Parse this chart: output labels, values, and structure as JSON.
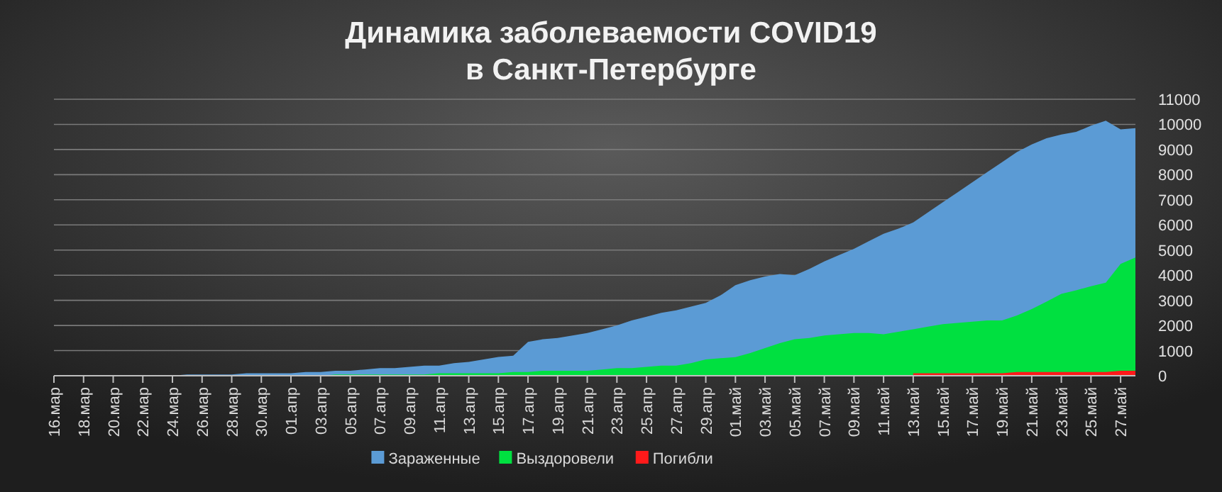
{
  "chart_data": {
    "type": "area",
    "title": "Динамика заболеваемости COVID19\nв Санкт-Петербурге",
    "categories": [
      "16.мар",
      null,
      "18.мар",
      null,
      "20.мар",
      null,
      "22.мар",
      null,
      "24.мар",
      null,
      "26.мар",
      null,
      "28.мар",
      null,
      "30.мар",
      null,
      "01.апр",
      null,
      "03.апр",
      null,
      "05.апр",
      null,
      "07.апр",
      null,
      "09.апр",
      null,
      "11.апр",
      null,
      "13.апр",
      null,
      "15.апр",
      null,
      "17.апр",
      null,
      "19.апр",
      null,
      "21.апр",
      null,
      "23.апр",
      null,
      "25.апр",
      null,
      "27.апр",
      null,
      "29.апр",
      null,
      "01.май",
      null,
      "03.май",
      null,
      "05.май",
      null,
      "07.май",
      null,
      "09.май",
      null,
      "11.май",
      null,
      "13.май",
      null,
      "15.май",
      null,
      "17.май",
      null,
      "19.май",
      null,
      "21.май",
      null,
      "23.май",
      null,
      "25.май",
      null,
      "27.май",
      null
    ],
    "series": [
      {
        "name": "Зараженные",
        "color": "#5b9bd5",
        "values": [
          0,
          0,
          0,
          0,
          0,
          0,
          0,
          0,
          0,
          50,
          50,
          50,
          50,
          100,
          100,
          100,
          100,
          150,
          150,
          200,
          200,
          250,
          300,
          300,
          350,
          400,
          400,
          500,
          550,
          650,
          750,
          800,
          1350,
          1450,
          1500,
          1600,
          1700,
          1850,
          2000,
          2200,
          2350,
          2500,
          2600,
          2750,
          2900,
          3200,
          3600,
          3800,
          3950,
          4050,
          4000,
          4250,
          4550,
          4800,
          5050,
          5350,
          5650,
          5850,
          6100,
          6500,
          6900,
          7300,
          7700,
          8100,
          8500,
          8900,
          9200,
          9450,
          9600,
          9700,
          9950,
          10150,
          9800,
          9850
        ]
      },
      {
        "name": "Выздоровели",
        "color": "#00e040",
        "values": [
          0,
          0,
          0,
          0,
          0,
          0,
          0,
          0,
          0,
          0,
          0,
          0,
          0,
          0,
          0,
          0,
          0,
          0,
          0,
          50,
          50,
          50,
          50,
          50,
          50,
          50,
          100,
          100,
          100,
          100,
          100,
          150,
          150,
          200,
          200,
          200,
          200,
          250,
          300,
          300,
          350,
          400,
          400,
          500,
          650,
          700,
          740,
          900,
          1100,
          1300,
          1450,
          1500,
          1600,
          1650,
          1700,
          1700,
          1650,
          1750,
          1850,
          1950,
          2050,
          2100,
          2150,
          2200,
          2200,
          2400,
          2650,
          2950,
          3260,
          3400,
          3560,
          3700,
          4450,
          4700
        ]
      },
      {
        "name": "Погибли",
        "color": "#ff1a1a",
        "values": [
          null,
          null,
          null,
          null,
          null,
          null,
          null,
          null,
          null,
          null,
          null,
          null,
          null,
          null,
          null,
          null,
          null,
          null,
          null,
          null,
          null,
          null,
          null,
          null,
          null,
          null,
          null,
          null,
          null,
          null,
          null,
          null,
          null,
          null,
          null,
          null,
          null,
          null,
          null,
          null,
          null,
          null,
          null,
          null,
          null,
          null,
          null,
          null,
          null,
          null,
          null,
          null,
          null,
          null,
          null,
          null,
          null,
          null,
          100,
          100,
          100,
          100,
          100,
          100,
          100,
          150,
          150,
          150,
          150,
          150,
          150,
          150,
          200,
          200
        ]
      }
    ],
    "ylim": [
      0,
      11000
    ],
    "yticks": [
      0,
      1000,
      2000,
      3000,
      4000,
      5000,
      6000,
      7000,
      8000,
      9000,
      10000,
      11000
    ],
    "grid": "y",
    "legend": "bottom"
  }
}
